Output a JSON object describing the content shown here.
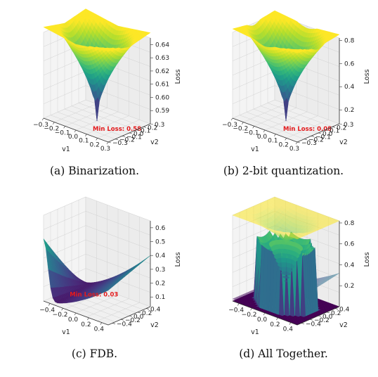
{
  "chart_data": [
    {
      "type": "surface3d",
      "caption": "(a) Binarization.",
      "xlabel": "v1",
      "ylabel": "v2",
      "zlabel": "Loss",
      "xlim": [
        -0.3,
        0.3
      ],
      "ylim": [
        -0.3,
        0.3
      ],
      "zlim": [
        0.58,
        0.645
      ],
      "xticks": [
        "−0.3",
        "−0.2",
        "−0.1",
        "0.0",
        "0.1",
        "0.2",
        "0.3"
      ],
      "yticks": [
        "−0.3",
        "−0.2",
        "−0.1",
        "0.0",
        "0.1",
        "0.2",
        "0.3"
      ],
      "zticks": [
        "0.59",
        "0.60",
        "0.61",
        "0.62",
        "0.63",
        "0.64"
      ],
      "annotation": "Min Loss: 0.58",
      "min_loss": 0.58,
      "max_loss": 0.645,
      "colormap": "viridis"
    },
    {
      "type": "surface3d",
      "caption": "(b) 2-bit quantization.",
      "xlabel": "v1",
      "ylabel": "v2",
      "zlabel": "Loss",
      "xlim": [
        -0.3,
        0.3
      ],
      "ylim": [
        -0.3,
        0.3
      ],
      "zlim": [
        0.08,
        0.82
      ],
      "xticks": [
        "−0.3",
        "−0.2",
        "−0.1",
        "0.0",
        "0.1",
        "0.2",
        "0.3"
      ],
      "yticks": [
        "−0.3",
        "−0.2",
        "−0.1",
        "0.0",
        "0.1",
        "0.2",
        "0.3"
      ],
      "zticks": [
        "0.2",
        "0.4",
        "0.6",
        "0.8"
      ],
      "annotation": "Min Loss: 0.08",
      "min_loss": 0.08,
      "max_loss": 0.82,
      "colormap": "viridis"
    },
    {
      "type": "surface3d",
      "caption": "(c) FDB.",
      "xlabel": "v1",
      "ylabel": "v2",
      "zlabel": "Loss",
      "xlim": [
        -0.5,
        0.5
      ],
      "ylim": [
        -0.5,
        0.5
      ],
      "zlim": [
        0.03,
        0.65
      ],
      "xticks": [
        "−0.4",
        "−0.2",
        "0.0",
        "0.2",
        "0.4"
      ],
      "yticks": [
        "−0.4",
        "−0.2",
        "0.0",
        "0.2",
        "0.4"
      ],
      "zticks": [
        "0.1",
        "0.2",
        "0.3",
        "0.4",
        "0.5",
        "0.6"
      ],
      "annotation": "Min Loss: 0.03",
      "min_loss": 0.03,
      "colormap": "viridis"
    },
    {
      "type": "surface3d",
      "caption": "(d) All Together.",
      "xlabel": "v1",
      "ylabel": "v2",
      "zlabel": "Loss",
      "xlim": [
        -0.5,
        0.5
      ],
      "ylim": [
        -0.5,
        0.5
      ],
      "zlim": [
        0.0,
        0.82
      ],
      "xticks": [
        "−0.4",
        "−0.2",
        "0.0",
        "0.2",
        "0.4"
      ],
      "yticks": [
        "−0.4",
        "−0.2",
        "0.0",
        "0.2",
        "0.4"
      ],
      "zticks": [
        "0.2",
        "0.4",
        "0.6",
        "0.8"
      ],
      "colormap": "viridis"
    }
  ]
}
